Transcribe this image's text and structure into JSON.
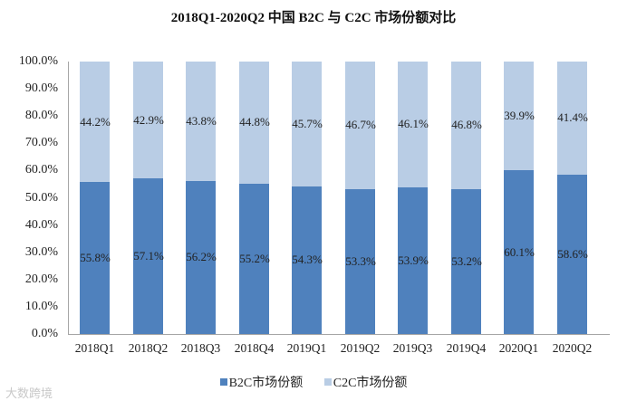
{
  "title": "2018Q1-2020Q2 中国 B2C 与 C2C 市场份额对比",
  "colors": {
    "b2c": "#4f81bd",
    "c2c": "#b9cde5",
    "axis": "#a6a6a6"
  },
  "y_ticks": [
    "100.0%",
    "90.0%",
    "80.0%",
    "70.0%",
    "60.0%",
    "50.0%",
    "40.0%",
    "30.0%",
    "20.0%",
    "10.0%",
    "0.0%"
  ],
  "legend": {
    "b2c": "B2C市场份额",
    "c2c": "C2C市场份额"
  },
  "watermark": "大数跨境",
  "bars": [
    {
      "category": "2018Q1",
      "b2c": "55.8%",
      "c2c": "44.2%"
    },
    {
      "category": "2018Q2",
      "b2c": "57.1%",
      "c2c": "42.9%"
    },
    {
      "category": "2018Q3",
      "b2c": "56.2%",
      "c2c": "43.8%"
    },
    {
      "category": "2018Q4",
      "b2c": "55.2%",
      "c2c": "44.8%"
    },
    {
      "category": "2019Q1",
      "b2c": "54.3%",
      "c2c": "45.7%"
    },
    {
      "category": "2019Q2",
      "b2c": "53.3%",
      "c2c": "46.7%"
    },
    {
      "category": "2019Q3",
      "b2c": "53.9%",
      "c2c": "46.1%"
    },
    {
      "category": "2019Q4",
      "b2c": "53.2%",
      "c2c": "46.8%"
    },
    {
      "category": "2020Q1",
      "b2c": "60.1%",
      "c2c": "39.9%"
    },
    {
      "category": "2020Q2",
      "b2c": "58.6%",
      "c2c": "41.4%"
    }
  ],
  "chart_data": {
    "type": "bar",
    "stacked": true,
    "percent_stacked": true,
    "title": "2018Q1-2020Q2 中国 B2C 与 C2C 市场份额对比",
    "xlabel": "",
    "ylabel": "",
    "ylim": [
      0,
      100
    ],
    "y_tick_labels": [
      "0.0%",
      "10.0%",
      "20.0%",
      "30.0%",
      "40.0%",
      "50.0%",
      "60.0%",
      "70.0%",
      "80.0%",
      "90.0%",
      "100.0%"
    ],
    "categories": [
      "2018Q1",
      "2018Q2",
      "2018Q3",
      "2018Q4",
      "2019Q1",
      "2019Q2",
      "2019Q3",
      "2019Q4",
      "2020Q1",
      "2020Q2"
    ],
    "series": [
      {
        "name": "B2C市场份额",
        "color": "#4f81bd",
        "values": [
          55.8,
          57.1,
          56.2,
          55.2,
          54.3,
          53.3,
          53.9,
          53.2,
          60.1,
          58.6
        ]
      },
      {
        "name": "C2C市场份额",
        "color": "#b9cde5",
        "values": [
          44.2,
          42.9,
          43.8,
          44.8,
          45.7,
          46.7,
          46.1,
          46.8,
          39.9,
          41.4
        ]
      }
    ],
    "data_labels": true,
    "grid": false,
    "legend_position": "bottom"
  }
}
